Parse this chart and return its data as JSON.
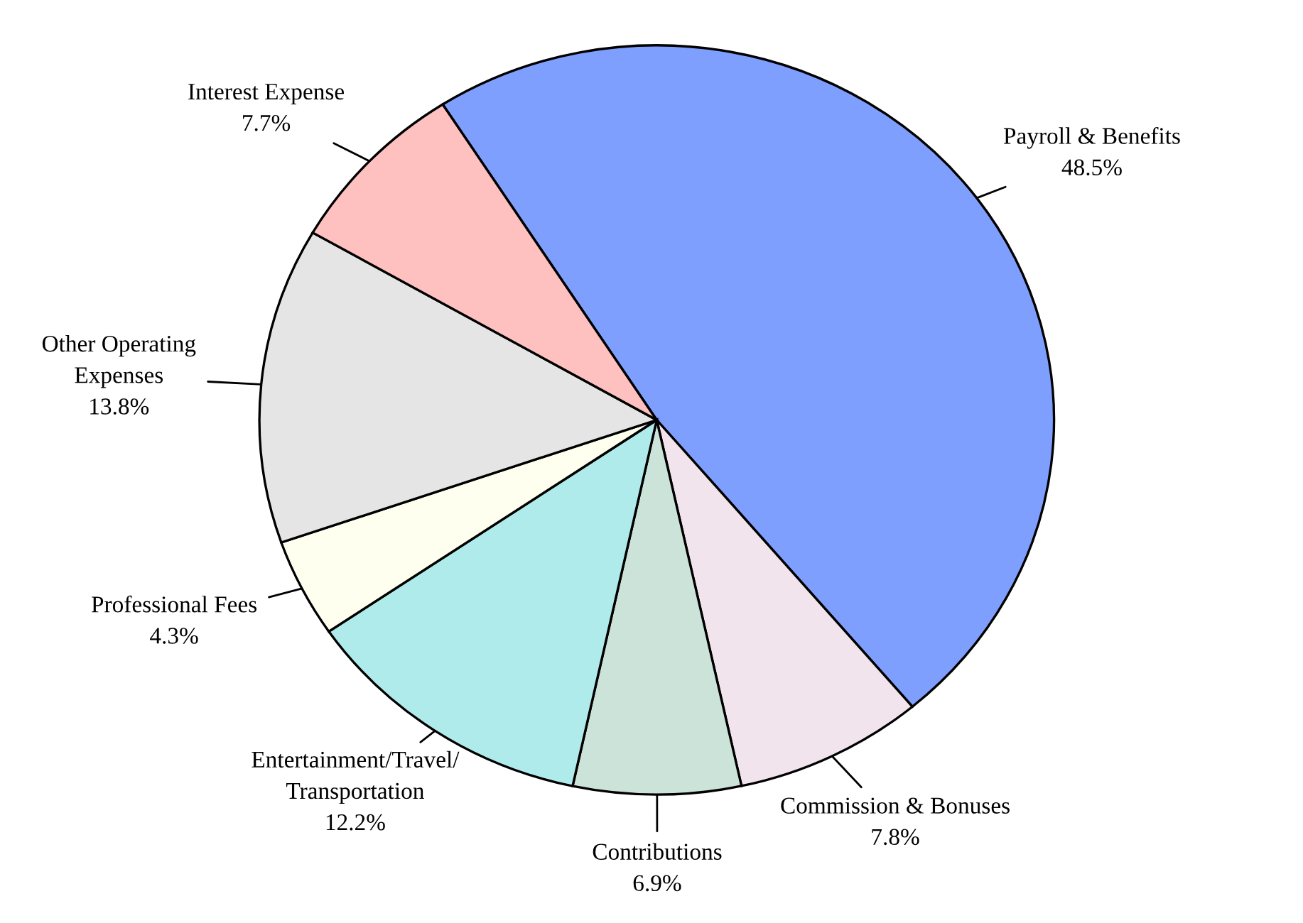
{
  "chart_data": {
    "type": "pie",
    "categories": [
      "Payroll & Benefits",
      "Commission & Bonuses",
      "Contributions",
      "Entertainment/Travel/\nTransportation",
      "Professional Fees",
      "Other Operating\nExpenses",
      "Interest Expense"
    ],
    "values": [
      48.5,
      7.8,
      6.9,
      12.2,
      4.3,
      13.8,
      7.7
    ],
    "value_labels": [
      "48.5%",
      "7.8%",
      "6.9%",
      "12.2%",
      "4.3%",
      "13.8%",
      "7.7%"
    ],
    "colors": [
      "#7f9fff",
      "#f2e4ec",
      "#cce3d9",
      "#b0ebeb",
      "#fffff0",
      "#e5e5e5",
      "#ffc0c0"
    ]
  }
}
